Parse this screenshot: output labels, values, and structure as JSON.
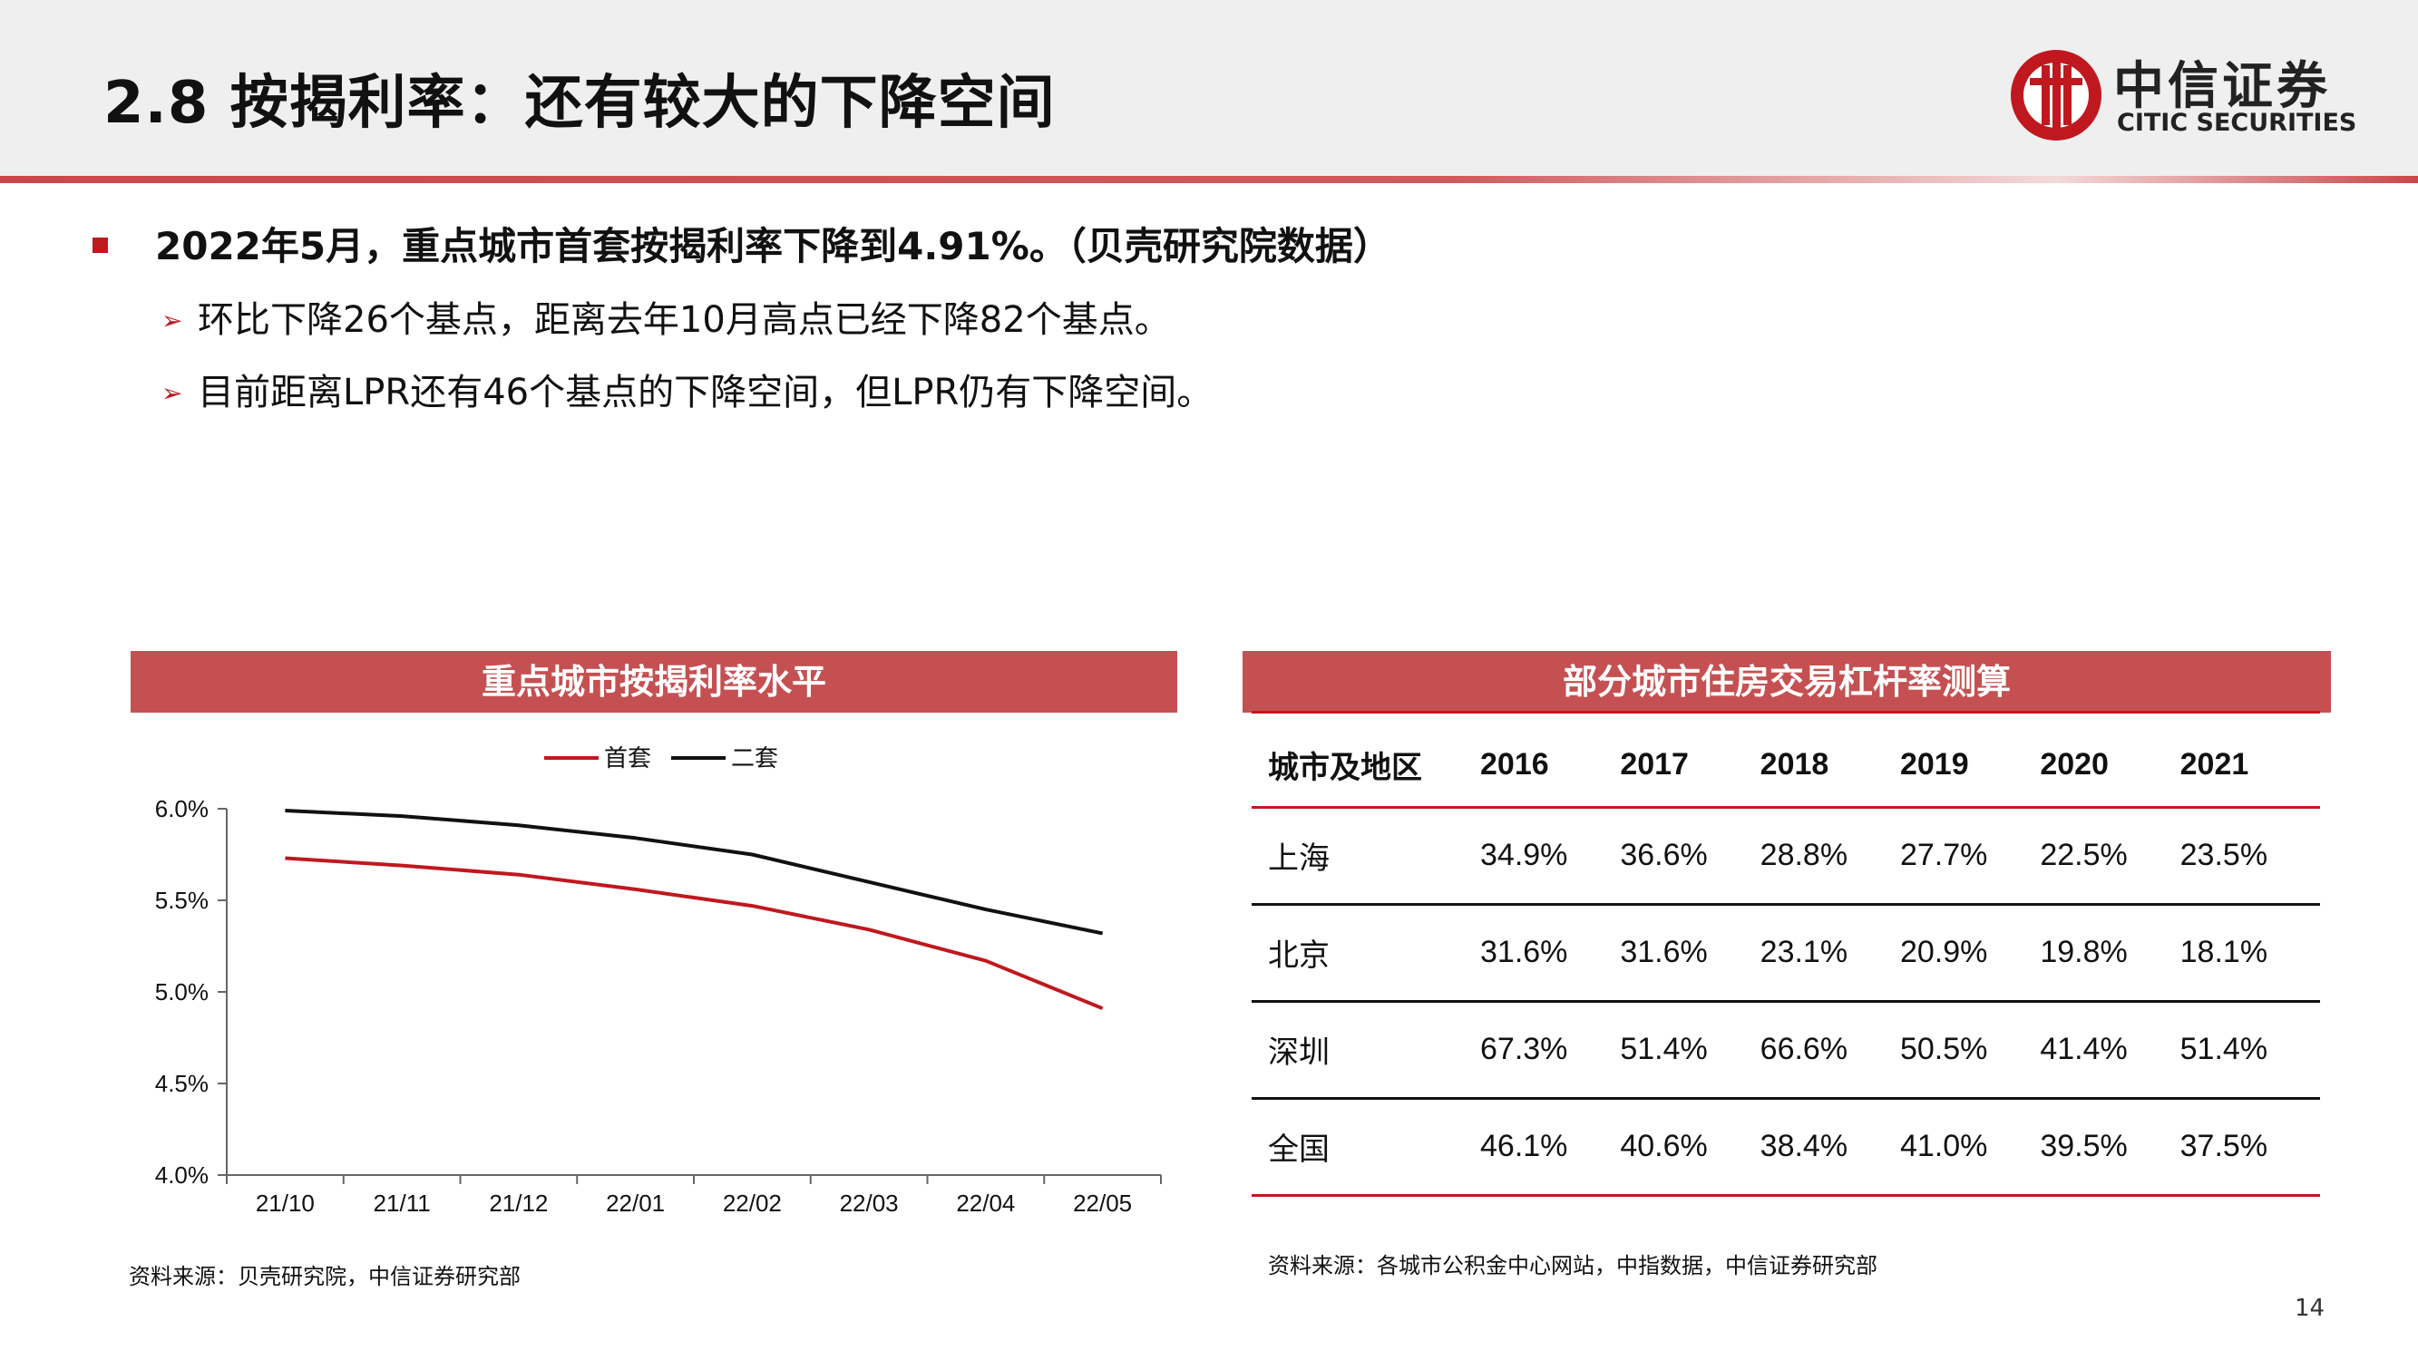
{
  "header": {
    "title": "2.8 按揭利率：还有较大的下降空间",
    "logo_cn": "中信证券",
    "logo_en": "CITIC SECURITIES"
  },
  "bullets": {
    "main": "2022年5月，重点城市首套按揭利率下降到4.91%。（贝壳研究院数据）",
    "sub": [
      "环比下降26个基点，距离去年10月高点已经下降82个基点。",
      "目前距离LPR还有46个基点的下降空间，但LPR仍有下降空间。"
    ]
  },
  "left_panel": {
    "title": "重点城市按揭利率水平",
    "source": "资料来源：贝壳研究院，中信证券研究部"
  },
  "chart_data": {
    "type": "line",
    "title": "重点城市按揭利率水平",
    "x": [
      "21/10",
      "21/11",
      "21/12",
      "22/01",
      "22/02",
      "22/03",
      "22/04",
      "22/05"
    ],
    "series": [
      {
        "name": "首套",
        "color": "#c0181f",
        "values": [
          5.73,
          5.69,
          5.64,
          5.56,
          5.47,
          5.34,
          5.17,
          4.91
        ]
      },
      {
        "name": "二套",
        "color": "#111111",
        "values": [
          5.99,
          5.96,
          5.91,
          5.84,
          5.75,
          5.6,
          5.45,
          5.32
        ]
      }
    ],
    "y_ticks": [
      "4.0%",
      "4.5%",
      "5.0%",
      "5.5%",
      "6.0%"
    ],
    "ylim": [
      4.0,
      6.0
    ],
    "legend_position": "top-center",
    "grid": false
  },
  "right_panel": {
    "title": "部分城市住房交易杠杆率测算",
    "source": "资料来源：各城市公积金中心网站，中指数据，中信证券研究部",
    "table": {
      "headers": [
        "城市及地区",
        "2016",
        "2017",
        "2018",
        "2019",
        "2020",
        "2021"
      ],
      "rows": [
        [
          "上海",
          "34.9%",
          "36.6%",
          "28.8%",
          "27.7%",
          "22.5%",
          "23.5%"
        ],
        [
          "北京",
          "31.6%",
          "31.6%",
          "23.1%",
          "20.9%",
          "19.8%",
          "18.1%"
        ],
        [
          "深圳",
          "67.3%",
          "51.4%",
          "66.6%",
          "50.5%",
          "41.4%",
          "51.4%"
        ],
        [
          "全国",
          "46.1%",
          "40.6%",
          "38.4%",
          "41.0%",
          "39.5%",
          "37.5%"
        ]
      ]
    }
  },
  "page_number": "14"
}
